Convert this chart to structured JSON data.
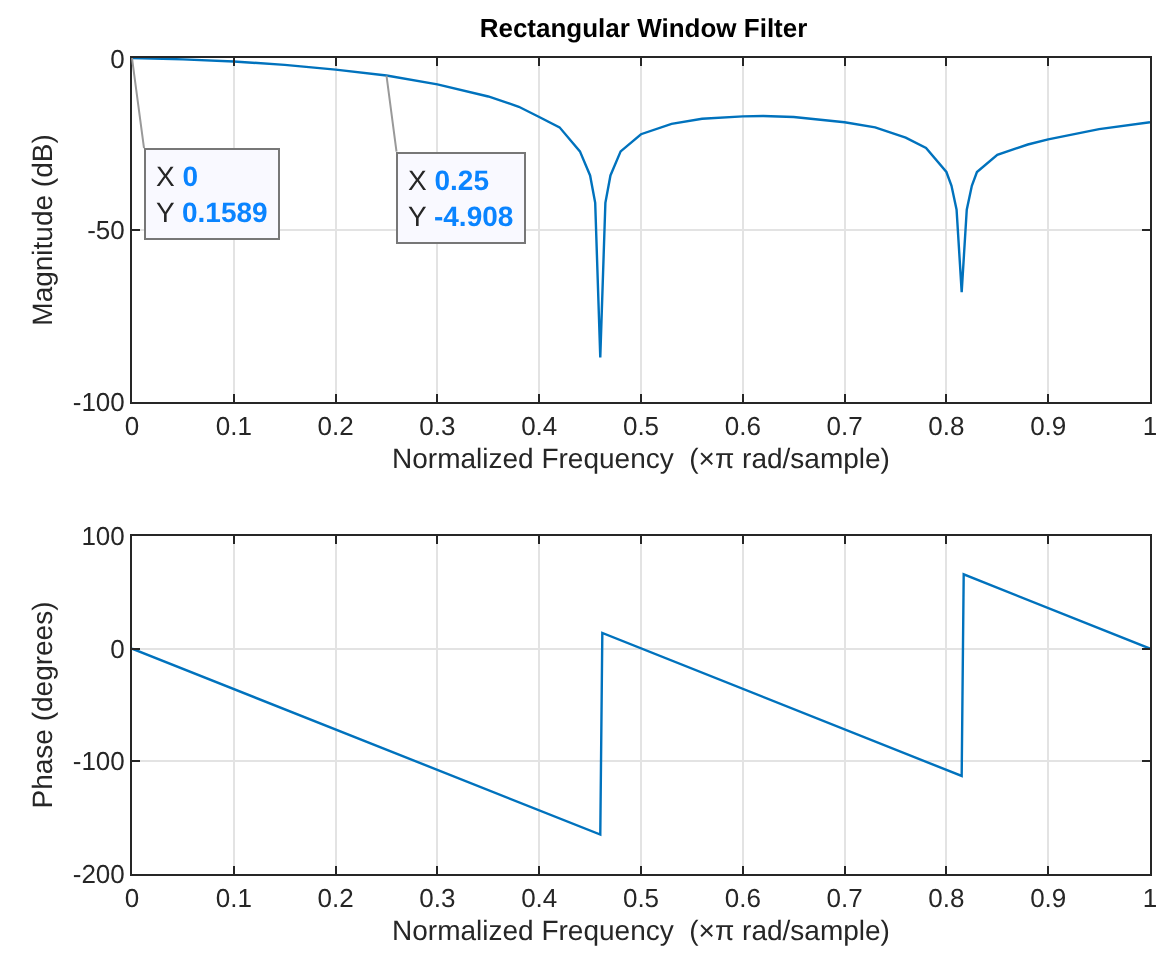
{
  "chart_data": [
    {
      "type": "line",
      "title": "Rectangular Window Filter",
      "xlabel": "Normalized Frequency  (×π rad/sample)",
      "ylabel": "Magnitude (dB)",
      "color": "#0072bd",
      "x": [
        0,
        0.05,
        0.1,
        0.15,
        0.2,
        0.25,
        0.3,
        0.35,
        0.38,
        0.4,
        0.42,
        0.44,
        0.45,
        0.455,
        0.46,
        0.465,
        0.47,
        0.48,
        0.5,
        0.53,
        0.56,
        0.6,
        0.62,
        0.65,
        0.7,
        0.73,
        0.76,
        0.78,
        0.8,
        0.805,
        0.81,
        0.815,
        0.82,
        0.825,
        0.83,
        0.85,
        0.88,
        0.9,
        0.95,
        1
      ],
      "values": [
        0.2,
        -0.2,
        -0.8,
        -1.8,
        -3.2,
        -4.9,
        -7.5,
        -11,
        -14,
        -17,
        -20,
        -27,
        -34,
        -42,
        -87,
        -42,
        -34,
        -27,
        -22,
        -19,
        -17.5,
        -16.8,
        -16.7,
        -17,
        -18.5,
        -20,
        -23,
        -26,
        -33,
        -37,
        -44,
        -68,
        -44,
        -37,
        -33,
        -28,
        -25,
        -23.5,
        -20.5,
        -18.5
      ],
      "xlim": [
        0,
        1
      ],
      "ylim": [
        -100,
        0.2
      ],
      "xticks": [
        0,
        0.1,
        0.2,
        0.3,
        0.4,
        0.5,
        0.6,
        0.7,
        0.8,
        0.9,
        1
      ],
      "yticks": [
        -100,
        -50,
        0
      ],
      "grid": true,
      "annotations": [
        {
          "text": "X 0\nY 0.1589",
          "x": 0,
          "y": 0.1589
        },
        {
          "text": "X 0.25\nY -4.908",
          "x": 0.25,
          "y": -4.908
        }
      ]
    },
    {
      "type": "line",
      "xlabel": "Normalized Frequency  (×π rad/sample)",
      "ylabel": "Phase (degrees)",
      "color": "#0072bd",
      "x": [
        0,
        0.46,
        0.462,
        0.815,
        0.817,
        1
      ],
      "values": [
        0,
        -165,
        14,
        -113,
        66,
        0
      ],
      "xlim": [
        0,
        1
      ],
      "ylim": [
        -200,
        100
      ],
      "xticks": [
        0,
        0.1,
        0.2,
        0.3,
        0.4,
        0.5,
        0.6,
        0.7,
        0.8,
        0.9,
        1
      ],
      "yticks": [
        -200,
        -100,
        0,
        100
      ],
      "grid": true
    }
  ]
}
